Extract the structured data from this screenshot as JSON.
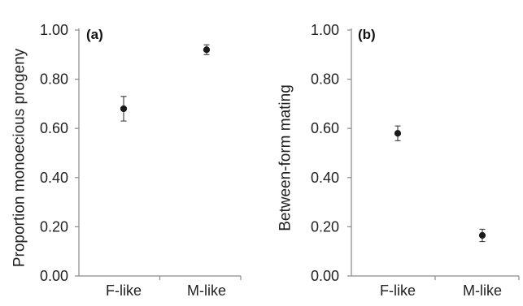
{
  "chart_data": [
    {
      "type": "scatter",
      "panel_label": "(a)",
      "title": "",
      "xlabel": "",
      "ylabel": "Proportion monoecious progeny",
      "categories": [
        "F-like",
        "M-like"
      ],
      "ylim": [
        0.0,
        1.0
      ],
      "yticks": [
        "0.00",
        "0.20",
        "0.40",
        "0.60",
        "0.80",
        "1.00"
      ],
      "series": [
        {
          "values": [
            0.68,
            0.92
          ],
          "error_low": [
            0.63,
            0.9
          ],
          "error_high": [
            0.73,
            0.94
          ]
        }
      ],
      "grid": false
    },
    {
      "type": "scatter",
      "panel_label": "(b)",
      "title": "",
      "xlabel": "",
      "ylabel": "Between-form mating",
      "categories": [
        "F-like",
        "M-like"
      ],
      "ylim": [
        0.0,
        1.0
      ],
      "yticks": [
        "0.00",
        "0.20",
        "0.40",
        "0.60",
        "0.80",
        "1.00"
      ],
      "series": [
        {
          "values": [
            0.58,
            0.165
          ],
          "error_low": [
            0.55,
            0.14
          ],
          "error_high": [
            0.61,
            0.19
          ]
        }
      ],
      "grid": false
    }
  ]
}
